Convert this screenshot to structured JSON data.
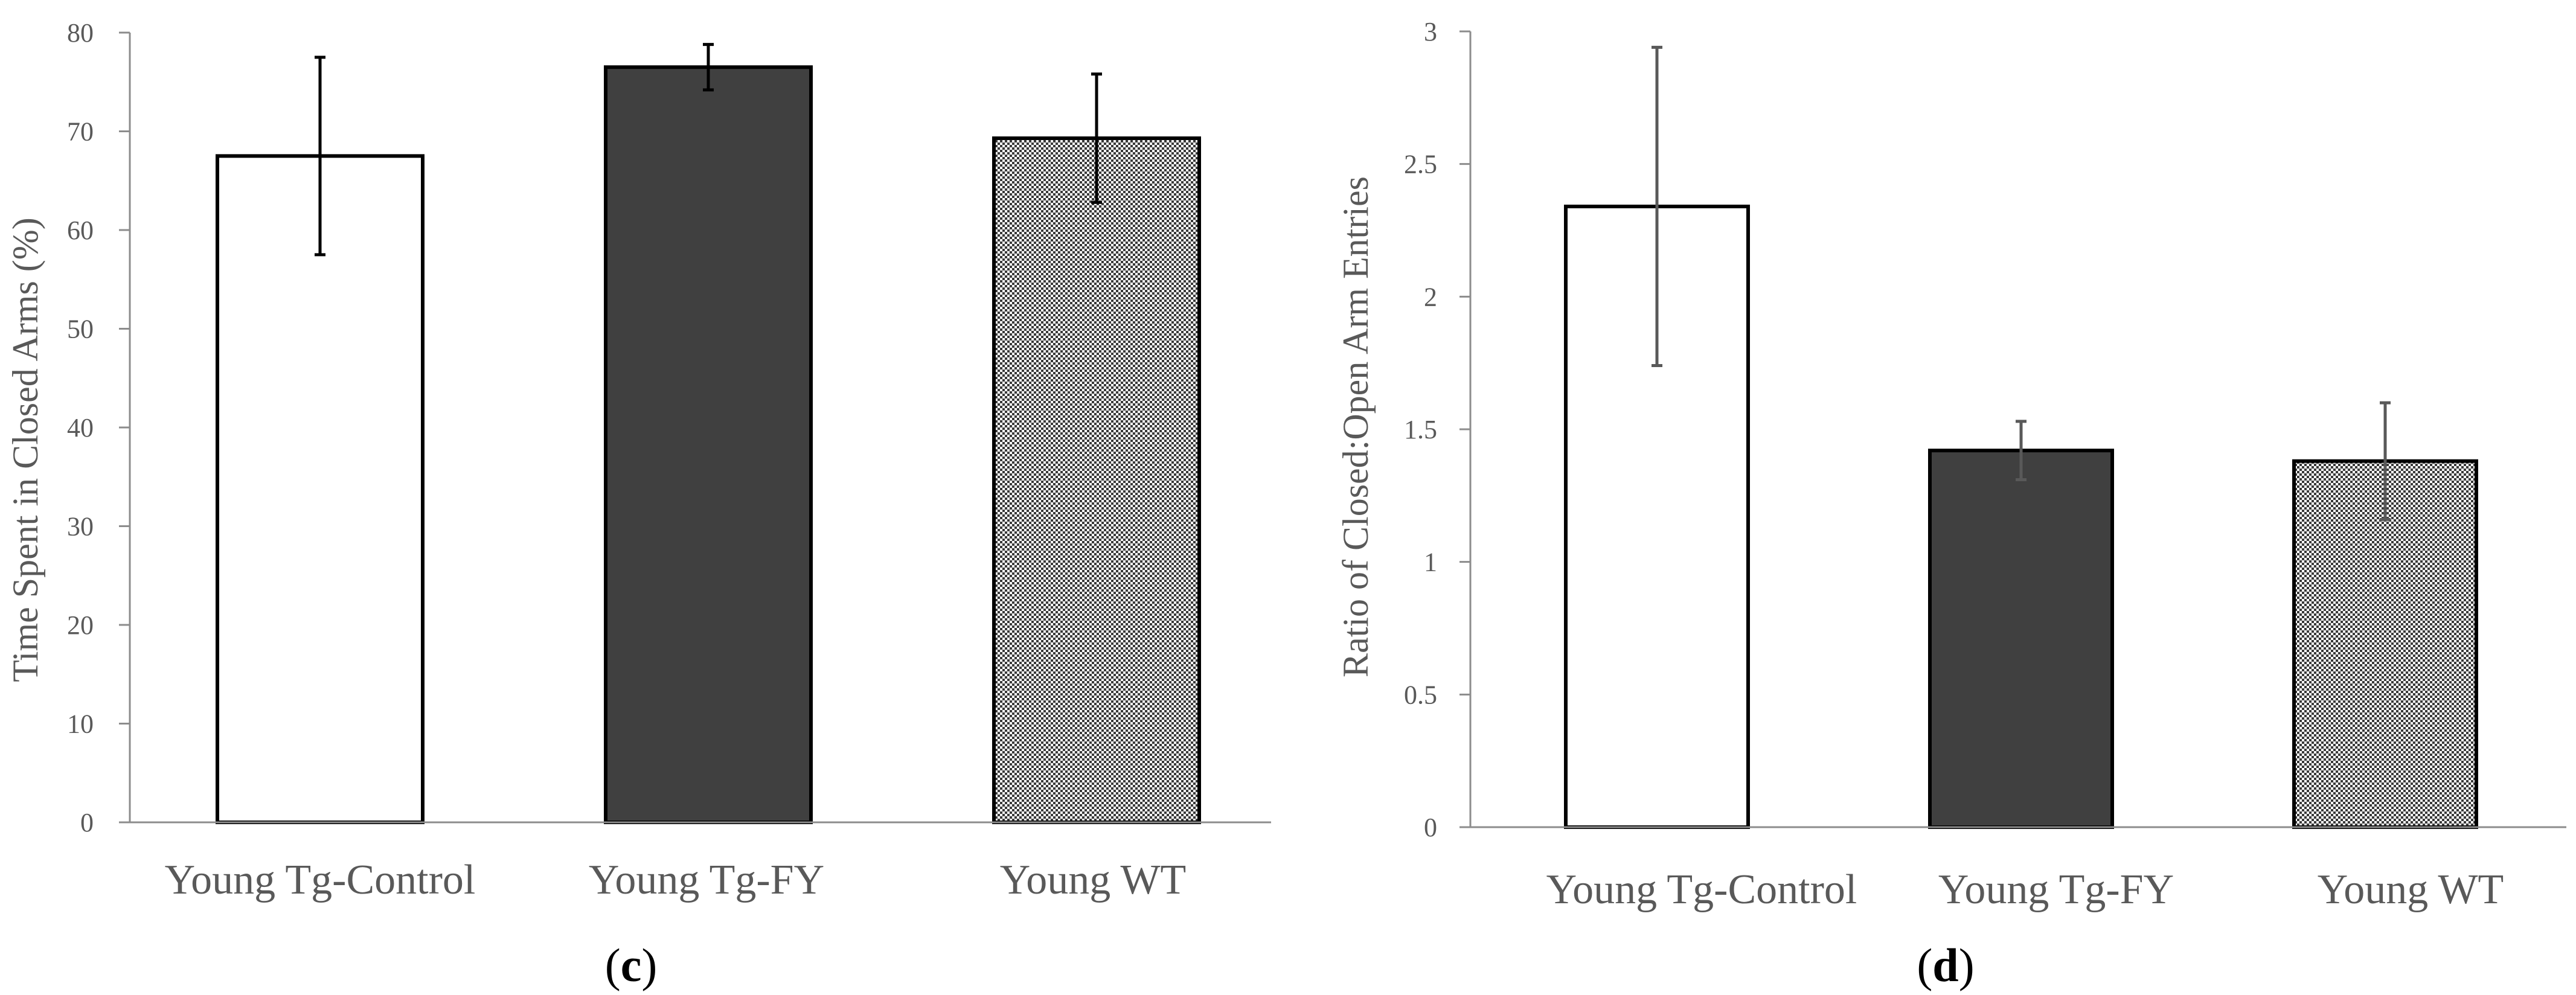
{
  "colors": {
    "control_fill": "#ffffff",
    "fy_fill": "#404040",
    "wt_pattern_bg": "#ffffff",
    "wt_pattern_fg": "#3a3a3a",
    "bar_edge": "#000000",
    "axis": "#8c8c8c",
    "text": "#595959"
  },
  "chart_data": [
    {
      "type": "bar",
      "panel_label": "c",
      "title": "",
      "xlabel": "",
      "ylabel": "Time Spent in Closed Arms (%)",
      "ylim": [
        0,
        80
      ],
      "yticks": [
        "0",
        "10",
        "20",
        "30",
        "40",
        "50",
        "60",
        "70",
        "80"
      ],
      "categories": [
        "Young Tg-Control",
        "Young Tg-FY",
        "Young WT"
      ],
      "values": [
        67.5,
        76.5,
        69.3
      ],
      "errors": [
        10,
        2.3,
        6.5
      ],
      "fills": [
        "control",
        "fy",
        "wt"
      ],
      "legend": "none",
      "grid": false
    },
    {
      "type": "bar",
      "panel_label": "d",
      "title": "",
      "xlabel": "",
      "ylabel": "Ratio of Closed:Open Arm Entries",
      "ylim": [
        0,
        3
      ],
      "yticks": [
        "0",
        "0.5",
        "1",
        "1.5",
        "2",
        "2.5",
        "3"
      ],
      "categories": [
        "Young Tg-Control",
        "Young Tg-FY",
        "Young WT"
      ],
      "values": [
        2.34,
        1.42,
        1.38
      ],
      "errors": [
        0.6,
        0.11,
        0.22
      ],
      "fills": [
        "control",
        "fy",
        "wt"
      ],
      "legend": "none",
      "grid": false
    }
  ]
}
